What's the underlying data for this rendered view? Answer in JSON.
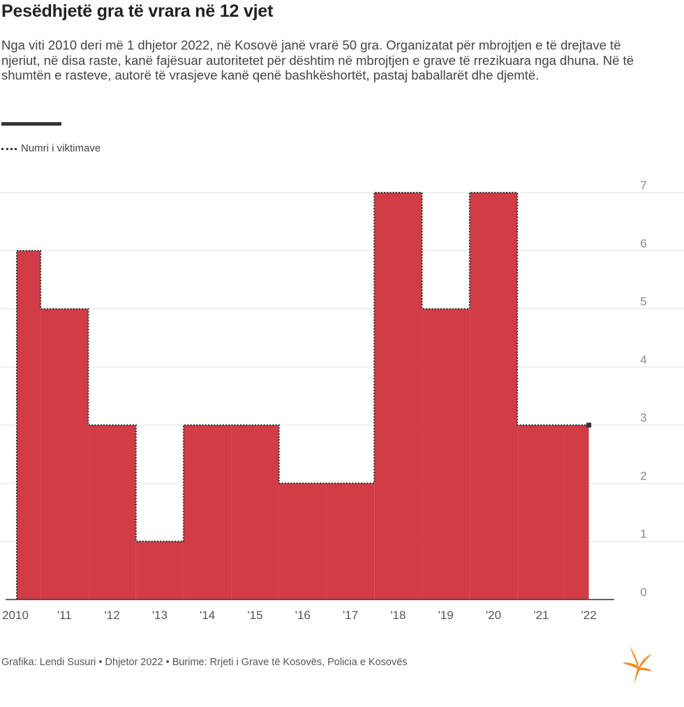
{
  "header": {
    "title": "Pesëdhjetë gra të vrara në 12 vjet",
    "subtitle": "Nga viti 2010 deri më 1 dhjetor 2022, në Kosovë janë vrarë 50 gra. Organizatat për mbrojtjen e të drejtave të njeriut, në disa raste, kanë fajësuar autoritetet për dështim në mbrojtjen e grave të rrezikuara nga dhuna. Në të shumtën e rasteve, autorë të vrasjeve kanë qenë bashkëshortët, pastaj baballarët dhe djemtë."
  },
  "legend": {
    "label": "Numri i viktimave"
  },
  "footer": {
    "text": "Grafika: Lendi Susuri • Dhjetor 2022 • Burime: Rrjeti i Grave të Kosovës, Policia e Kosovës"
  },
  "colors": {
    "fill": "#d13c46",
    "line": "#333333",
    "grid": "#e2e2e2",
    "axis": "#333333",
    "logo": "#f28c28"
  },
  "chart_data": {
    "type": "area",
    "title": "Pesëdhjetë gra të vrara në 12 vjet",
    "series": [
      {
        "name": "Numri i viktimave",
        "values": [
          6,
          5,
          3,
          1,
          3,
          3,
          2,
          2,
          7,
          5,
          7,
          3,
          3
        ]
      }
    ],
    "x": [
      2010,
      2011,
      2012,
      2013,
      2014,
      2015,
      2016,
      2017,
      2018,
      2019,
      2020,
      2021,
      2022
    ],
    "x_tick_labels": [
      "2010",
      "'11",
      "'12",
      "'13",
      "'14",
      "'15",
      "'16",
      "'17",
      "'18",
      "'19",
      "'20",
      "'21",
      "'22"
    ],
    "y_tick_labels": [
      "0",
      "1",
      "2",
      "3",
      "4",
      "5",
      "6",
      "7"
    ],
    "ylim": [
      0,
      7
    ],
    "step": true,
    "grid": true,
    "y_axis_position": "right"
  }
}
